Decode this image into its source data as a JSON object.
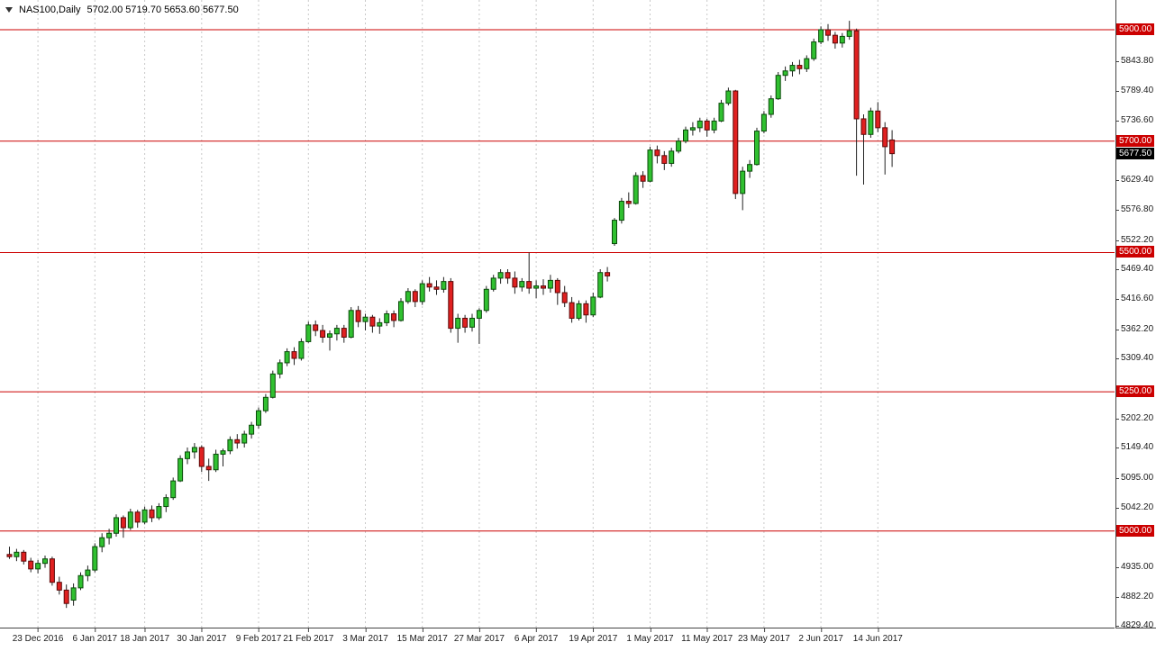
{
  "header": {
    "symbol": "NAS100,Daily",
    "ohlc": "5702.00 5719.70 5653.60 5677.50"
  },
  "chart_data": {
    "type": "candlestick",
    "symbol": "NAS100",
    "timeframe": "Daily",
    "title": "NAS100,Daily",
    "current_bar": {
      "open": 5702.0,
      "high": 5719.7,
      "low": 5653.6,
      "close": 5677.5
    },
    "y_range": [
      4826.7,
      5953.3
    ],
    "grid": "vertical-dashed",
    "legend_position": "none",
    "y_axis_labels": [
      "5843.80",
      "5789.40",
      "5736.60",
      "5629.40",
      "5576.80",
      "5522.20",
      "5469.40",
      "5416.60",
      "5362.20",
      "5309.40",
      "5202.20",
      "5149.40",
      "5095.00",
      "5042.20",
      "4935.00",
      "4882.20",
      "4829.40"
    ],
    "price_lines": [
      {
        "price": 5900,
        "label": "5900.00"
      },
      {
        "price": 5700,
        "label": "5700.00"
      },
      {
        "price": 5500,
        "label": "5500.00"
      },
      {
        "price": 5250,
        "label": "5250.00"
      },
      {
        "price": 5000,
        "label": "5000.00"
      }
    ],
    "current_price": {
      "value": 5677.5,
      "label": "5677.50"
    },
    "x_axis": [
      {
        "index": 4,
        "label": "23 Dec 2016"
      },
      {
        "index": 12,
        "label": "6 Jan 2017"
      },
      {
        "index": 19,
        "label": "18 Jan 2017"
      },
      {
        "index": 27,
        "label": "30 Jan 2017"
      },
      {
        "index": 35,
        "label": "9 Feb 2017"
      },
      {
        "index": 42,
        "label": "21 Feb 2017"
      },
      {
        "index": 50,
        "label": "3 Mar 2017"
      },
      {
        "index": 58,
        "label": "15 Mar 2017"
      },
      {
        "index": 66,
        "label": "27 Mar 2017"
      },
      {
        "index": 74,
        "label": "6 Apr 2017"
      },
      {
        "index": 82,
        "label": "19 Apr 2017"
      },
      {
        "index": 90,
        "label": "1 May 2017"
      },
      {
        "index": 98,
        "label": "11 May 2017"
      },
      {
        "index": 106,
        "label": "23 May 2017"
      },
      {
        "index": 114,
        "label": "2 Jun 2017"
      },
      {
        "index": 122,
        "label": "14 Jun 2017"
      }
    ],
    "dates": [
      "2016-12-19",
      "2016-12-20",
      "2016-12-21",
      "2016-12-22",
      "2016-12-23",
      "2016-12-27",
      "2016-12-28",
      "2016-12-29",
      "2016-12-30",
      "2017-01-03",
      "2017-01-04",
      "2017-01-05",
      "2017-01-06",
      "2017-01-09",
      "2017-01-10",
      "2017-01-11",
      "2017-01-12",
      "2017-01-13",
      "2017-01-17",
      "2017-01-18",
      "2017-01-19",
      "2017-01-20",
      "2017-01-23",
      "2017-01-24",
      "2017-01-25",
      "2017-01-26",
      "2017-01-27",
      "2017-01-30",
      "2017-01-31",
      "2017-02-01",
      "2017-02-02",
      "2017-02-03",
      "2017-02-06",
      "2017-02-07",
      "2017-02-08",
      "2017-02-09",
      "2017-02-10",
      "2017-02-13",
      "2017-02-14",
      "2017-02-15",
      "2017-02-16",
      "2017-02-17",
      "2017-02-21",
      "2017-02-22",
      "2017-02-23",
      "2017-02-24",
      "2017-02-27",
      "2017-02-28",
      "2017-03-01",
      "2017-03-02",
      "2017-03-03",
      "2017-03-06",
      "2017-03-07",
      "2017-03-08",
      "2017-03-09",
      "2017-03-10",
      "2017-03-13",
      "2017-03-14",
      "2017-03-15",
      "2017-03-16",
      "2017-03-17",
      "2017-03-20",
      "2017-03-21",
      "2017-03-22",
      "2017-03-23",
      "2017-03-24",
      "2017-03-27",
      "2017-03-28",
      "2017-03-29",
      "2017-03-30",
      "2017-03-31",
      "2017-04-03",
      "2017-04-04",
      "2017-04-05",
      "2017-04-06",
      "2017-04-07",
      "2017-04-10",
      "2017-04-11",
      "2017-04-12",
      "2017-04-13",
      "2017-04-17",
      "2017-04-18",
      "2017-04-19",
      "2017-04-20",
      "2017-04-21",
      "2017-04-24",
      "2017-04-25",
      "2017-04-26",
      "2017-04-27",
      "2017-04-28",
      "2017-05-01",
      "2017-05-02",
      "2017-05-03",
      "2017-05-04",
      "2017-05-05",
      "2017-05-08",
      "2017-05-09",
      "2017-05-10",
      "2017-05-11",
      "2017-05-12",
      "2017-05-15",
      "2017-05-16",
      "2017-05-17",
      "2017-05-18",
      "2017-05-19",
      "2017-05-22",
      "2017-05-23",
      "2017-05-24",
      "2017-05-25",
      "2017-05-26",
      "2017-05-29",
      "2017-05-30",
      "2017-05-31",
      "2017-06-01",
      "2017-06-02",
      "2017-06-05",
      "2017-06-06",
      "2017-06-07",
      "2017-06-08",
      "2017-06-09",
      "2017-06-12",
      "2017-06-13",
      "2017-06-14",
      "2017-06-15",
      "2017-06-16"
    ],
    "candles": [
      [
        4958,
        4972,
        4950,
        4954
      ],
      [
        4954,
        4968,
        4946,
        4962
      ],
      [
        4962,
        4966,
        4940,
        4946
      ],
      [
        4946,
        4952,
        4926,
        4932
      ],
      [
        4932,
        4948,
        4924,
        4942
      ],
      [
        4942,
        4956,
        4934,
        4950
      ],
      [
        4950,
        4954,
        4902,
        4908
      ],
      [
        4908,
        4918,
        4886,
        4894
      ],
      [
        4894,
        4904,
        4862,
        4870
      ],
      [
        4876,
        4906,
        4866,
        4898
      ],
      [
        4898,
        4926,
        4894,
        4920
      ],
      [
        4920,
        4938,
        4910,
        4930
      ],
      [
        4930,
        4978,
        4926,
        4972
      ],
      [
        4972,
        4996,
        4962,
        4988
      ],
      [
        4988,
        5004,
        4976,
        4996
      ],
      [
        4996,
        5030,
        4990,
        5024
      ],
      [
        5024,
        5028,
        4988,
        5006
      ],
      [
        5006,
        5040,
        5002,
        5034
      ],
      [
        5034,
        5038,
        5006,
        5016
      ],
      [
        5016,
        5044,
        5012,
        5038
      ],
      [
        5038,
        5046,
        5016,
        5024
      ],
      [
        5024,
        5050,
        5020,
        5044
      ],
      [
        5044,
        5066,
        5034,
        5060
      ],
      [
        5060,
        5096,
        5056,
        5090
      ],
      [
        5090,
        5136,
        5088,
        5130
      ],
      [
        5130,
        5150,
        5120,
        5142
      ],
      [
        5142,
        5158,
        5130,
        5150
      ],
      [
        5150,
        5154,
        5106,
        5116
      ],
      [
        5116,
        5130,
        5090,
        5110
      ],
      [
        5110,
        5146,
        5106,
        5138
      ],
      [
        5138,
        5148,
        5116,
        5144
      ],
      [
        5144,
        5170,
        5138,
        5164
      ],
      [
        5164,
        5174,
        5148,
        5158
      ],
      [
        5158,
        5180,
        5150,
        5174
      ],
      [
        5174,
        5196,
        5166,
        5190
      ],
      [
        5190,
        5222,
        5184,
        5216
      ],
      [
        5216,
        5246,
        5212,
        5240
      ],
      [
        5240,
        5288,
        5238,
        5282
      ],
      [
        5282,
        5308,
        5274,
        5302
      ],
      [
        5302,
        5328,
        5296,
        5322
      ],
      [
        5322,
        5330,
        5298,
        5310
      ],
      [
        5310,
        5346,
        5306,
        5340
      ],
      [
        5340,
        5376,
        5338,
        5370
      ],
      [
        5370,
        5378,
        5350,
        5360
      ],
      [
        5360,
        5370,
        5338,
        5348
      ],
      [
        5348,
        5360,
        5324,
        5354
      ],
      [
        5354,
        5370,
        5342,
        5364
      ],
      [
        5364,
        5370,
        5338,
        5348
      ],
      [
        5348,
        5402,
        5346,
        5396
      ],
      [
        5396,
        5404,
        5366,
        5376
      ],
      [
        5376,
        5390,
        5360,
        5384
      ],
      [
        5384,
        5388,
        5356,
        5368
      ],
      [
        5368,
        5382,
        5354,
        5374
      ],
      [
        5374,
        5396,
        5368,
        5390
      ],
      [
        5390,
        5396,
        5366,
        5378
      ],
      [
        5378,
        5418,
        5376,
        5412
      ],
      [
        5412,
        5436,
        5408,
        5430
      ],
      [
        5430,
        5434,
        5402,
        5412
      ],
      [
        5412,
        5450,
        5406,
        5444
      ],
      [
        5444,
        5456,
        5430,
        5438
      ],
      [
        5438,
        5450,
        5424,
        5434
      ],
      [
        5434,
        5456,
        5428,
        5448
      ],
      [
        5448,
        5454,
        5356,
        5364
      ],
      [
        5364,
        5390,
        5338,
        5382
      ],
      [
        5382,
        5388,
        5356,
        5366
      ],
      [
        5366,
        5390,
        5358,
        5382
      ],
      [
        5382,
        5400,
        5336,
        5396
      ],
      [
        5396,
        5440,
        5392,
        5434
      ],
      [
        5434,
        5460,
        5430,
        5454
      ],
      [
        5454,
        5470,
        5444,
        5464
      ],
      [
        5464,
        5470,
        5444,
        5454
      ],
      [
        5454,
        5466,
        5426,
        5438
      ],
      [
        5438,
        5454,
        5430,
        5448
      ],
      [
        5448,
        5500,
        5426,
        5436
      ],
      [
        5436,
        5450,
        5418,
        5440
      ],
      [
        5440,
        5452,
        5424,
        5436
      ],
      [
        5436,
        5460,
        5428,
        5450
      ],
      [
        5450,
        5454,
        5406,
        5428
      ],
      [
        5428,
        5440,
        5402,
        5410
      ],
      [
        5410,
        5420,
        5374,
        5382
      ],
      [
        5382,
        5414,
        5378,
        5408
      ],
      [
        5408,
        5414,
        5374,
        5388
      ],
      [
        5388,
        5428,
        5384,
        5420
      ],
      [
        5420,
        5470,
        5418,
        5464
      ],
      [
        5464,
        5474,
        5448,
        5458
      ],
      [
        5516,
        5562,
        5512,
        5558
      ],
      [
        5558,
        5598,
        5552,
        5592
      ],
      [
        5592,
        5608,
        5580,
        5588
      ],
      [
        5588,
        5644,
        5586,
        5638
      ],
      [
        5638,
        5646,
        5616,
        5628
      ],
      [
        5628,
        5690,
        5626,
        5684
      ],
      [
        5684,
        5692,
        5660,
        5674
      ],
      [
        5674,
        5682,
        5648,
        5660
      ],
      [
        5660,
        5688,
        5654,
        5682
      ],
      [
        5682,
        5706,
        5678,
        5700
      ],
      [
        5700,
        5726,
        5696,
        5720
      ],
      [
        5720,
        5734,
        5710,
        5724
      ],
      [
        5724,
        5742,
        5716,
        5736
      ],
      [
        5736,
        5740,
        5708,
        5720
      ],
      [
        5720,
        5742,
        5714,
        5736
      ],
      [
        5736,
        5774,
        5734,
        5768
      ],
      [
        5768,
        5796,
        5764,
        5790
      ],
      [
        5790,
        5792,
        5596,
        5606
      ],
      [
        5606,
        5654,
        5576,
        5646
      ],
      [
        5646,
        5666,
        5634,
        5658
      ],
      [
        5658,
        5724,
        5656,
        5718
      ],
      [
        5718,
        5754,
        5714,
        5748
      ],
      [
        5748,
        5782,
        5742,
        5776
      ],
      [
        5776,
        5824,
        5774,
        5818
      ],
      [
        5818,
        5834,
        5808,
        5826
      ],
      [
        5826,
        5842,
        5816,
        5836
      ],
      [
        5836,
        5846,
        5820,
        5830
      ],
      [
        5830,
        5854,
        5824,
        5848
      ],
      [
        5848,
        5884,
        5844,
        5878
      ],
      [
        5878,
        5906,
        5874,
        5900
      ],
      [
        5900,
        5910,
        5880,
        5890
      ],
      [
        5890,
        5896,
        5866,
        5876
      ],
      [
        5876,
        5894,
        5868,
        5888
      ],
      [
        5888,
        5916,
        5882,
        5898
      ],
      [
        5898,
        5902,
        5638,
        5740
      ],
      [
        5740,
        5748,
        5622,
        5712
      ],
      [
        5712,
        5760,
        5706,
        5754
      ],
      [
        5754,
        5770,
        5716,
        5724
      ],
      [
        5724,
        5734,
        5640,
        5690
      ],
      [
        5702,
        5719.7,
        5653.6,
        5677.5
      ]
    ],
    "colors": {
      "bull_fill": "#30c030",
      "bull_border": "#0a4a0a",
      "bear_fill": "#e02020",
      "bear_border": "#5a0808",
      "wick": "#222222",
      "grid": "#c9c9c9",
      "level_line": "#cc0000",
      "level_label_bg": "#cc0000",
      "current_label_bg": "#000000",
      "axis_text": "#1a1a1a",
      "background": "#ffffff"
    }
  }
}
